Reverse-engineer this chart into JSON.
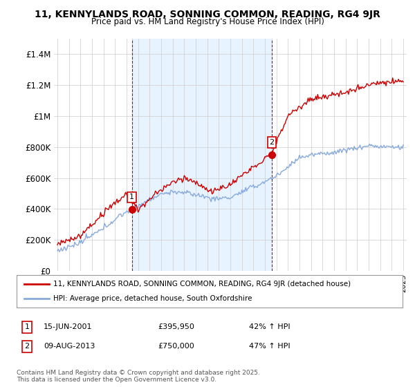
{
  "title": "11, KENNYLANDS ROAD, SONNING COMMON, READING, RG4 9JR",
  "subtitle": "Price paid vs. HM Land Registry's House Price Index (HPI)",
  "ylim": [
    0,
    1500000
  ],
  "yticks": [
    0,
    200000,
    400000,
    600000,
    800000,
    1000000,
    1200000,
    1400000
  ],
  "ytick_labels": [
    "£0",
    "£200K",
    "£400K",
    "£600K",
    "£800K",
    "£1M",
    "£1.2M",
    "£1.4M"
  ],
  "sale1_year": 2001.46,
  "sale1_price": 395950,
  "sale2_year": 2013.6,
  "sale2_price": 750000,
  "line_color_property": "#cc0000",
  "line_color_hpi": "#88aadd",
  "shade_color": "#ddeeff",
  "vline_color": "#cc0000",
  "grid_color": "#cccccc",
  "bg_color": "#ffffff",
  "legend_label_property": "11, KENNYLANDS ROAD, SONNING COMMON, READING, RG4 9JR (detached house)",
  "legend_label_hpi": "HPI: Average price, detached house, South Oxfordshire",
  "footnote": "Contains HM Land Registry data © Crown copyright and database right 2025.\nThis data is licensed under the Open Government Licence v3.0.",
  "sale1_date_str": "15-JUN-2001",
  "sale1_price_str": "£395,950",
  "sale1_change_str": "42% ↑ HPI",
  "sale2_date_str": "09-AUG-2013",
  "sale2_price_str": "£750,000",
  "sale2_change_str": "47% ↑ HPI"
}
